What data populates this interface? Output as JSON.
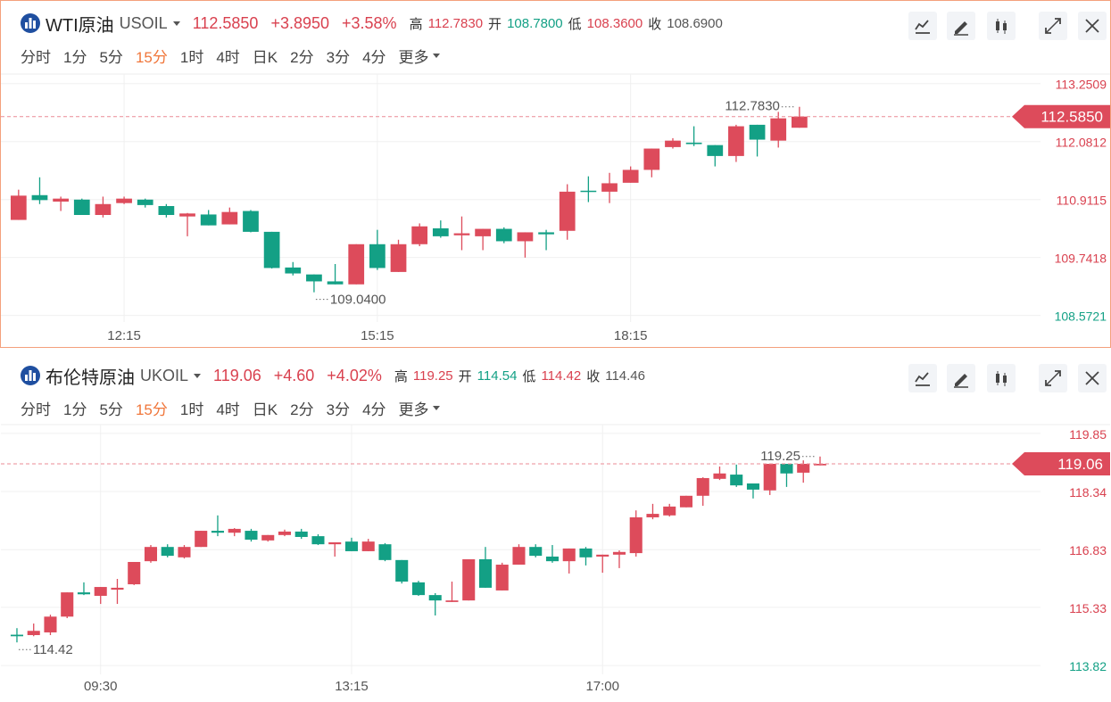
{
  "chart_data": [
    {
      "type": "candlestick",
      "selected": true,
      "title": "WTI原油",
      "symbol": "USOIL",
      "price": "112.5850",
      "change": "+3.8950",
      "change_pct": "+3.58%",
      "stats": [
        {
          "label": "高",
          "value": "112.7830",
          "color": "#d9414f"
        },
        {
          "label": "开",
          "value": "108.7800",
          "color": "#13a085"
        },
        {
          "label": "低",
          "value": "108.3600",
          "color": "#d9414f"
        },
        {
          "label": "收",
          "value": "108.6900",
          "color": "#555555"
        }
      ],
      "periods": [
        "分时",
        "1分",
        "5分",
        "15分",
        "1时",
        "4时",
        "日K",
        "2分",
        "3分",
        "4分",
        "更多"
      ],
      "active_period_index": 3,
      "up_color": "#dd4b5b",
      "down_color": "#13a085",
      "categories": [
        null,
        null,
        null,
        null,
        null,
        "12:15",
        null,
        null,
        null,
        null,
        null,
        null,
        null,
        null,
        null,
        null,
        null,
        "15:15",
        null,
        null,
        null,
        null,
        null,
        null,
        null,
        null,
        null,
        null,
        null,
        "18:15",
        null,
        null,
        null,
        null,
        null,
        null,
        null,
        null
      ],
      "open": [
        110.5,
        111.0,
        110.87,
        110.91,
        110.6,
        110.84,
        110.91,
        110.78,
        110.57,
        110.61,
        110.41,
        110.68,
        110.26,
        109.54,
        109.4,
        109.26,
        109.2,
        110.01,
        109.45,
        110.01,
        110.33,
        110.19,
        110.17,
        110.32,
        110.07,
        110.25,
        110.28,
        111.09,
        111.07,
        111.25,
        111.51,
        111.97,
        112.06,
        112.01,
        111.79,
        112.42,
        112.1,
        112.36
      ],
      "high": [
        111.11,
        111.36,
        110.97,
        110.93,
        110.97,
        110.97,
        110.93,
        110.82,
        110.64,
        110.7,
        110.75,
        110.7,
        110.26,
        109.65,
        109.4,
        109.61,
        110.01,
        110.3,
        110.1,
        110.43,
        110.49,
        110.57,
        110.32,
        110.35,
        110.25,
        110.3,
        111.22,
        111.38,
        111.45,
        111.58,
        111.94,
        112.15,
        112.39,
        112.01,
        112.42,
        112.42,
        112.68,
        112.783
      ],
      "low": [
        110.5,
        110.82,
        110.68,
        110.6,
        110.55,
        110.82,
        110.75,
        110.55,
        110.17,
        110.39,
        110.41,
        110.25,
        109.52,
        109.38,
        109.04,
        109.2,
        109.2,
        109.49,
        109.45,
        109.97,
        110.14,
        109.89,
        109.89,
        110.03,
        109.74,
        109.89,
        110.1,
        110.86,
        110.84,
        111.25,
        111.36,
        111.94,
        111.99,
        111.58,
        111.67,
        111.78,
        111.96,
        112.36
      ],
      "close": [
        110.99,
        110.9,
        110.93,
        110.6,
        110.82,
        110.93,
        110.8,
        110.6,
        110.63,
        110.39,
        110.66,
        110.26,
        109.53,
        109.42,
        109.26,
        109.2,
        110.01,
        109.53,
        110.01,
        110.37,
        110.17,
        110.23,
        110.32,
        110.07,
        110.25,
        110.21,
        111.07,
        111.07,
        111.24,
        111.51,
        111.94,
        112.1,
        112.03,
        111.79,
        112.39,
        112.12,
        112.55,
        112.585
      ],
      "ylim": [
        108.44,
        113.39
      ],
      "yticks": [
        113.2509,
        112.0812,
        110.9115,
        109.7418,
        108.5721
      ],
      "grid": true,
      "high_label": {
        "value": 112.783,
        "label": "112.7830"
      },
      "low_label": {
        "value": 109.04,
        "label": "109.0400"
      },
      "last_price": {
        "value": 112.585,
        "label": "112.5850"
      }
    },
    {
      "type": "candlestick",
      "selected": false,
      "title": "布伦特原油",
      "symbol": "UKOIL",
      "price": "119.06",
      "change": "+4.60",
      "change_pct": "+4.02%",
      "stats": [
        {
          "label": "高",
          "value": "119.25",
          "color": "#d9414f"
        },
        {
          "label": "开",
          "value": "114.54",
          "color": "#13a085"
        },
        {
          "label": "低",
          "value": "114.42",
          "color": "#d9414f"
        },
        {
          "label": "收",
          "value": "114.46",
          "color": "#555555"
        }
      ],
      "periods": [
        "分时",
        "1分",
        "5分",
        "15分",
        "1时",
        "4时",
        "日K",
        "2分",
        "3分",
        "4分",
        "更多"
      ],
      "active_period_index": 3,
      "up_color": "#dd4b5b",
      "down_color": "#13a085",
      "categories": [
        null,
        null,
        null,
        null,
        null,
        "09:30",
        null,
        null,
        null,
        null,
        null,
        null,
        null,
        null,
        null,
        null,
        null,
        null,
        null,
        null,
        "13:15",
        null,
        null,
        null,
        null,
        null,
        null,
        null,
        null,
        null,
        null,
        null,
        null,
        null,
        null,
        "17:00",
        null,
        null,
        null,
        null,
        null,
        null,
        null,
        null,
        null,
        null,
        null,
        null,
        null
      ],
      "open": [
        114.62,
        114.61,
        114.68,
        115.09,
        115.72,
        115.63,
        115.79,
        115.93,
        116.53,
        116.9,
        116.63,
        116.9,
        117.32,
        117.27,
        117.32,
        117.07,
        117.21,
        117.3,
        117.18,
        116.97,
        117.04,
        116.79,
        116.97,
        116.56,
        115.98,
        115.65,
        115.47,
        115.51,
        116.58,
        115.77,
        116.44,
        116.9,
        116.65,
        116.53,
        116.86,
        116.65,
        116.7,
        116.74,
        117.67,
        117.72,
        117.93,
        118.23,
        118.67,
        118.78,
        118.55,
        118.37,
        119.06,
        118.83,
        119.02
      ],
      "high": [
        114.79,
        114.91,
        115.14,
        115.72,
        115.98,
        115.86,
        116.07,
        116.51,
        116.95,
        116.97,
        116.95,
        117.32,
        117.72,
        117.39,
        117.37,
        117.21,
        117.35,
        117.37,
        117.23,
        117.02,
        117.14,
        117.11,
        117.0,
        116.56,
        116.02,
        115.7,
        116.0,
        116.58,
        116.9,
        116.49,
        116.97,
        116.97,
        116.95,
        116.86,
        116.9,
        116.7,
        116.81,
        117.85,
        118.02,
        118.02,
        118.23,
        118.71,
        118.99,
        119.04,
        118.55,
        119.06,
        119.06,
        119.15,
        119.25
      ],
      "low": [
        114.42,
        114.58,
        114.61,
        115.05,
        115.65,
        115.42,
        115.42,
        115.91,
        116.49,
        116.63,
        116.6,
        116.9,
        117.18,
        117.18,
        117.04,
        117.04,
        117.18,
        117.11,
        116.95,
        116.65,
        116.79,
        116.79,
        116.53,
        115.95,
        115.63,
        115.12,
        115.47,
        115.51,
        115.84,
        115.77,
        116.44,
        116.63,
        116.49,
        116.21,
        116.42,
        116.23,
        116.35,
        116.65,
        117.62,
        117.69,
        117.93,
        117.97,
        118.64,
        118.46,
        118.16,
        118.25,
        118.46,
        118.57,
        119.02
      ],
      "close": [
        114.58,
        114.72,
        115.09,
        115.72,
        115.67,
        115.86,
        115.84,
        116.51,
        116.9,
        116.67,
        116.9,
        117.32,
        117.27,
        117.37,
        117.09,
        117.21,
        117.3,
        117.16,
        116.97,
        117.02,
        116.79,
        117.04,
        116.56,
        116.0,
        115.65,
        115.51,
        115.51,
        116.58,
        115.84,
        116.44,
        116.9,
        116.67,
        116.53,
        116.86,
        116.63,
        116.7,
        116.77,
        117.67,
        117.76,
        117.95,
        118.23,
        118.69,
        118.81,
        118.5,
        118.39,
        119.06,
        118.81,
        119.06,
        119.06
      ],
      "ylim": [
        113.59,
        120.01
      ],
      "yticks": [
        119.85,
        118.34,
        116.83,
        115.33,
        113.82
      ],
      "grid": true,
      "high_label": {
        "value": 119.25,
        "label": "119.25"
      },
      "low_label": {
        "value": 114.42,
        "label": "114.42"
      },
      "last_price": {
        "value": 119.06,
        "label": "119.06"
      }
    }
  ]
}
